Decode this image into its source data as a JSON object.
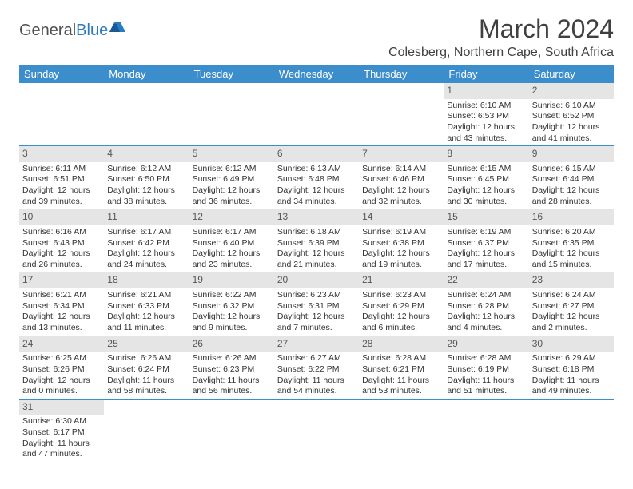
{
  "logo": {
    "text1": "General",
    "text2": "Blue"
  },
  "title": "March 2024",
  "location": "Colesberg, Northern Cape, South Africa",
  "colors": {
    "header_bg": "#3c8dcc",
    "header_text": "#ffffff",
    "daynum_bg": "#e5e5e5",
    "border": "#3c8dcc",
    "logo_gray": "#505050",
    "logo_blue": "#2a7bbf"
  },
  "weekdays": [
    "Sunday",
    "Monday",
    "Tuesday",
    "Wednesday",
    "Thursday",
    "Friday",
    "Saturday"
  ],
  "weeks": [
    [
      null,
      null,
      null,
      null,
      null,
      {
        "n": "1",
        "sr": "Sunrise: 6:10 AM",
        "ss": "Sunset: 6:53 PM",
        "dl": "Daylight: 12 hours and 43 minutes."
      },
      {
        "n": "2",
        "sr": "Sunrise: 6:10 AM",
        "ss": "Sunset: 6:52 PM",
        "dl": "Daylight: 12 hours and 41 minutes."
      }
    ],
    [
      {
        "n": "3",
        "sr": "Sunrise: 6:11 AM",
        "ss": "Sunset: 6:51 PM",
        "dl": "Daylight: 12 hours and 39 minutes."
      },
      {
        "n": "4",
        "sr": "Sunrise: 6:12 AM",
        "ss": "Sunset: 6:50 PM",
        "dl": "Daylight: 12 hours and 38 minutes."
      },
      {
        "n": "5",
        "sr": "Sunrise: 6:12 AM",
        "ss": "Sunset: 6:49 PM",
        "dl": "Daylight: 12 hours and 36 minutes."
      },
      {
        "n": "6",
        "sr": "Sunrise: 6:13 AM",
        "ss": "Sunset: 6:48 PM",
        "dl": "Daylight: 12 hours and 34 minutes."
      },
      {
        "n": "7",
        "sr": "Sunrise: 6:14 AM",
        "ss": "Sunset: 6:46 PM",
        "dl": "Daylight: 12 hours and 32 minutes."
      },
      {
        "n": "8",
        "sr": "Sunrise: 6:15 AM",
        "ss": "Sunset: 6:45 PM",
        "dl": "Daylight: 12 hours and 30 minutes."
      },
      {
        "n": "9",
        "sr": "Sunrise: 6:15 AM",
        "ss": "Sunset: 6:44 PM",
        "dl": "Daylight: 12 hours and 28 minutes."
      }
    ],
    [
      {
        "n": "10",
        "sr": "Sunrise: 6:16 AM",
        "ss": "Sunset: 6:43 PM",
        "dl": "Daylight: 12 hours and 26 minutes."
      },
      {
        "n": "11",
        "sr": "Sunrise: 6:17 AM",
        "ss": "Sunset: 6:42 PM",
        "dl": "Daylight: 12 hours and 24 minutes."
      },
      {
        "n": "12",
        "sr": "Sunrise: 6:17 AM",
        "ss": "Sunset: 6:40 PM",
        "dl": "Daylight: 12 hours and 23 minutes."
      },
      {
        "n": "13",
        "sr": "Sunrise: 6:18 AM",
        "ss": "Sunset: 6:39 PM",
        "dl": "Daylight: 12 hours and 21 minutes."
      },
      {
        "n": "14",
        "sr": "Sunrise: 6:19 AM",
        "ss": "Sunset: 6:38 PM",
        "dl": "Daylight: 12 hours and 19 minutes."
      },
      {
        "n": "15",
        "sr": "Sunrise: 6:19 AM",
        "ss": "Sunset: 6:37 PM",
        "dl": "Daylight: 12 hours and 17 minutes."
      },
      {
        "n": "16",
        "sr": "Sunrise: 6:20 AM",
        "ss": "Sunset: 6:35 PM",
        "dl": "Daylight: 12 hours and 15 minutes."
      }
    ],
    [
      {
        "n": "17",
        "sr": "Sunrise: 6:21 AM",
        "ss": "Sunset: 6:34 PM",
        "dl": "Daylight: 12 hours and 13 minutes."
      },
      {
        "n": "18",
        "sr": "Sunrise: 6:21 AM",
        "ss": "Sunset: 6:33 PM",
        "dl": "Daylight: 12 hours and 11 minutes."
      },
      {
        "n": "19",
        "sr": "Sunrise: 6:22 AM",
        "ss": "Sunset: 6:32 PM",
        "dl": "Daylight: 12 hours and 9 minutes."
      },
      {
        "n": "20",
        "sr": "Sunrise: 6:23 AM",
        "ss": "Sunset: 6:31 PM",
        "dl": "Daylight: 12 hours and 7 minutes."
      },
      {
        "n": "21",
        "sr": "Sunrise: 6:23 AM",
        "ss": "Sunset: 6:29 PM",
        "dl": "Daylight: 12 hours and 6 minutes."
      },
      {
        "n": "22",
        "sr": "Sunrise: 6:24 AM",
        "ss": "Sunset: 6:28 PM",
        "dl": "Daylight: 12 hours and 4 minutes."
      },
      {
        "n": "23",
        "sr": "Sunrise: 6:24 AM",
        "ss": "Sunset: 6:27 PM",
        "dl": "Daylight: 12 hours and 2 minutes."
      }
    ],
    [
      {
        "n": "24",
        "sr": "Sunrise: 6:25 AM",
        "ss": "Sunset: 6:26 PM",
        "dl": "Daylight: 12 hours and 0 minutes."
      },
      {
        "n": "25",
        "sr": "Sunrise: 6:26 AM",
        "ss": "Sunset: 6:24 PM",
        "dl": "Daylight: 11 hours and 58 minutes."
      },
      {
        "n": "26",
        "sr": "Sunrise: 6:26 AM",
        "ss": "Sunset: 6:23 PM",
        "dl": "Daylight: 11 hours and 56 minutes."
      },
      {
        "n": "27",
        "sr": "Sunrise: 6:27 AM",
        "ss": "Sunset: 6:22 PM",
        "dl": "Daylight: 11 hours and 54 minutes."
      },
      {
        "n": "28",
        "sr": "Sunrise: 6:28 AM",
        "ss": "Sunset: 6:21 PM",
        "dl": "Daylight: 11 hours and 53 minutes."
      },
      {
        "n": "29",
        "sr": "Sunrise: 6:28 AM",
        "ss": "Sunset: 6:19 PM",
        "dl": "Daylight: 11 hours and 51 minutes."
      },
      {
        "n": "30",
        "sr": "Sunrise: 6:29 AM",
        "ss": "Sunset: 6:18 PM",
        "dl": "Daylight: 11 hours and 49 minutes."
      }
    ],
    [
      {
        "n": "31",
        "sr": "Sunrise: 6:30 AM",
        "ss": "Sunset: 6:17 PM",
        "dl": "Daylight: 11 hours and 47 minutes."
      },
      null,
      null,
      null,
      null,
      null,
      null
    ]
  ]
}
